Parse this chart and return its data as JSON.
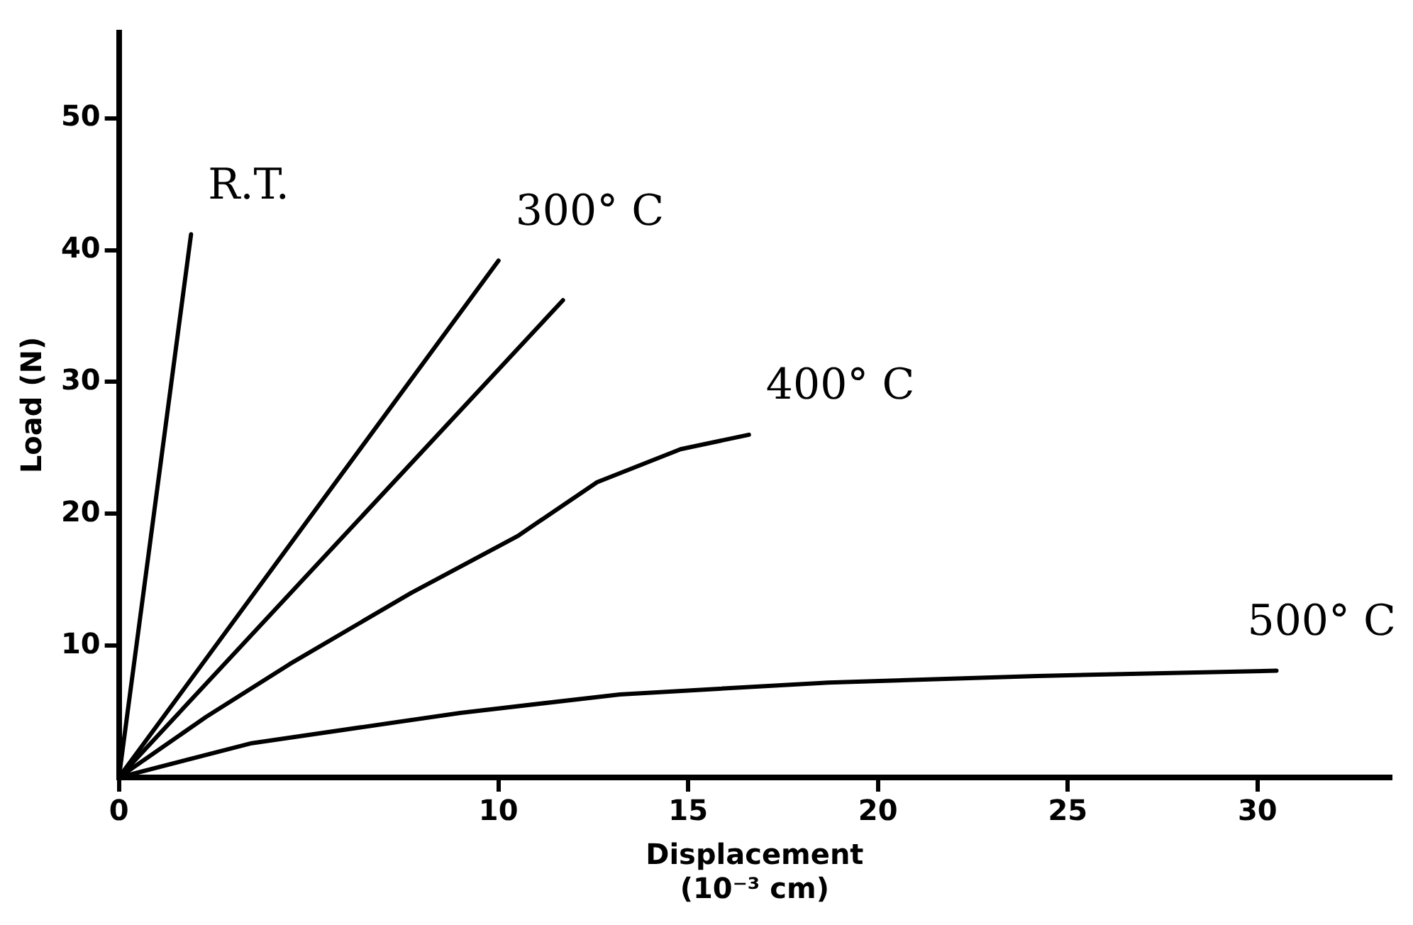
{
  "chart_data": {
    "type": "line",
    "xlabel": "Displacement\n(10⁻³ cm)",
    "ylabel": "Load (N)",
    "xlim": [
      0,
      33.5
    ],
    "ylim": [
      0,
      56.5
    ],
    "xticks": [
      0,
      10,
      15,
      20,
      25,
      30
    ],
    "yticks": [
      10,
      20,
      30,
      40,
      50
    ],
    "grid": false,
    "legend": false,
    "marker": "none",
    "line_style": "solid",
    "series": [
      {
        "name": "R.T.",
        "color": "#000000",
        "x": [
          0,
          1.9
        ],
        "values": [
          0,
          41.2
        ]
      },
      {
        "name": "300° C",
        "color": "#000000",
        "x": [
          0,
          10.0
        ],
        "values": [
          0,
          39.2
        ]
      },
      {
        "color": "#000000",
        "x": [
          0,
          11.7
        ],
        "values": [
          0,
          36.2
        ]
      },
      {
        "name": "400° C",
        "color": "#000000",
        "x": [
          0,
          2.3,
          4.5,
          7.7,
          10.5,
          12.6,
          14.8,
          16.6
        ],
        "values": [
          0,
          4.6,
          8.6,
          14.0,
          18.3,
          22.4,
          24.9,
          26.0
        ]
      },
      {
        "name": "500° C",
        "color": "#000000",
        "x": [
          0,
          3.5,
          9.0,
          13.2,
          18.7,
          24.2,
          30.5
        ],
        "values": [
          0,
          2.6,
          4.9,
          6.3,
          7.2,
          7.7,
          8.1
        ]
      }
    ]
  }
}
